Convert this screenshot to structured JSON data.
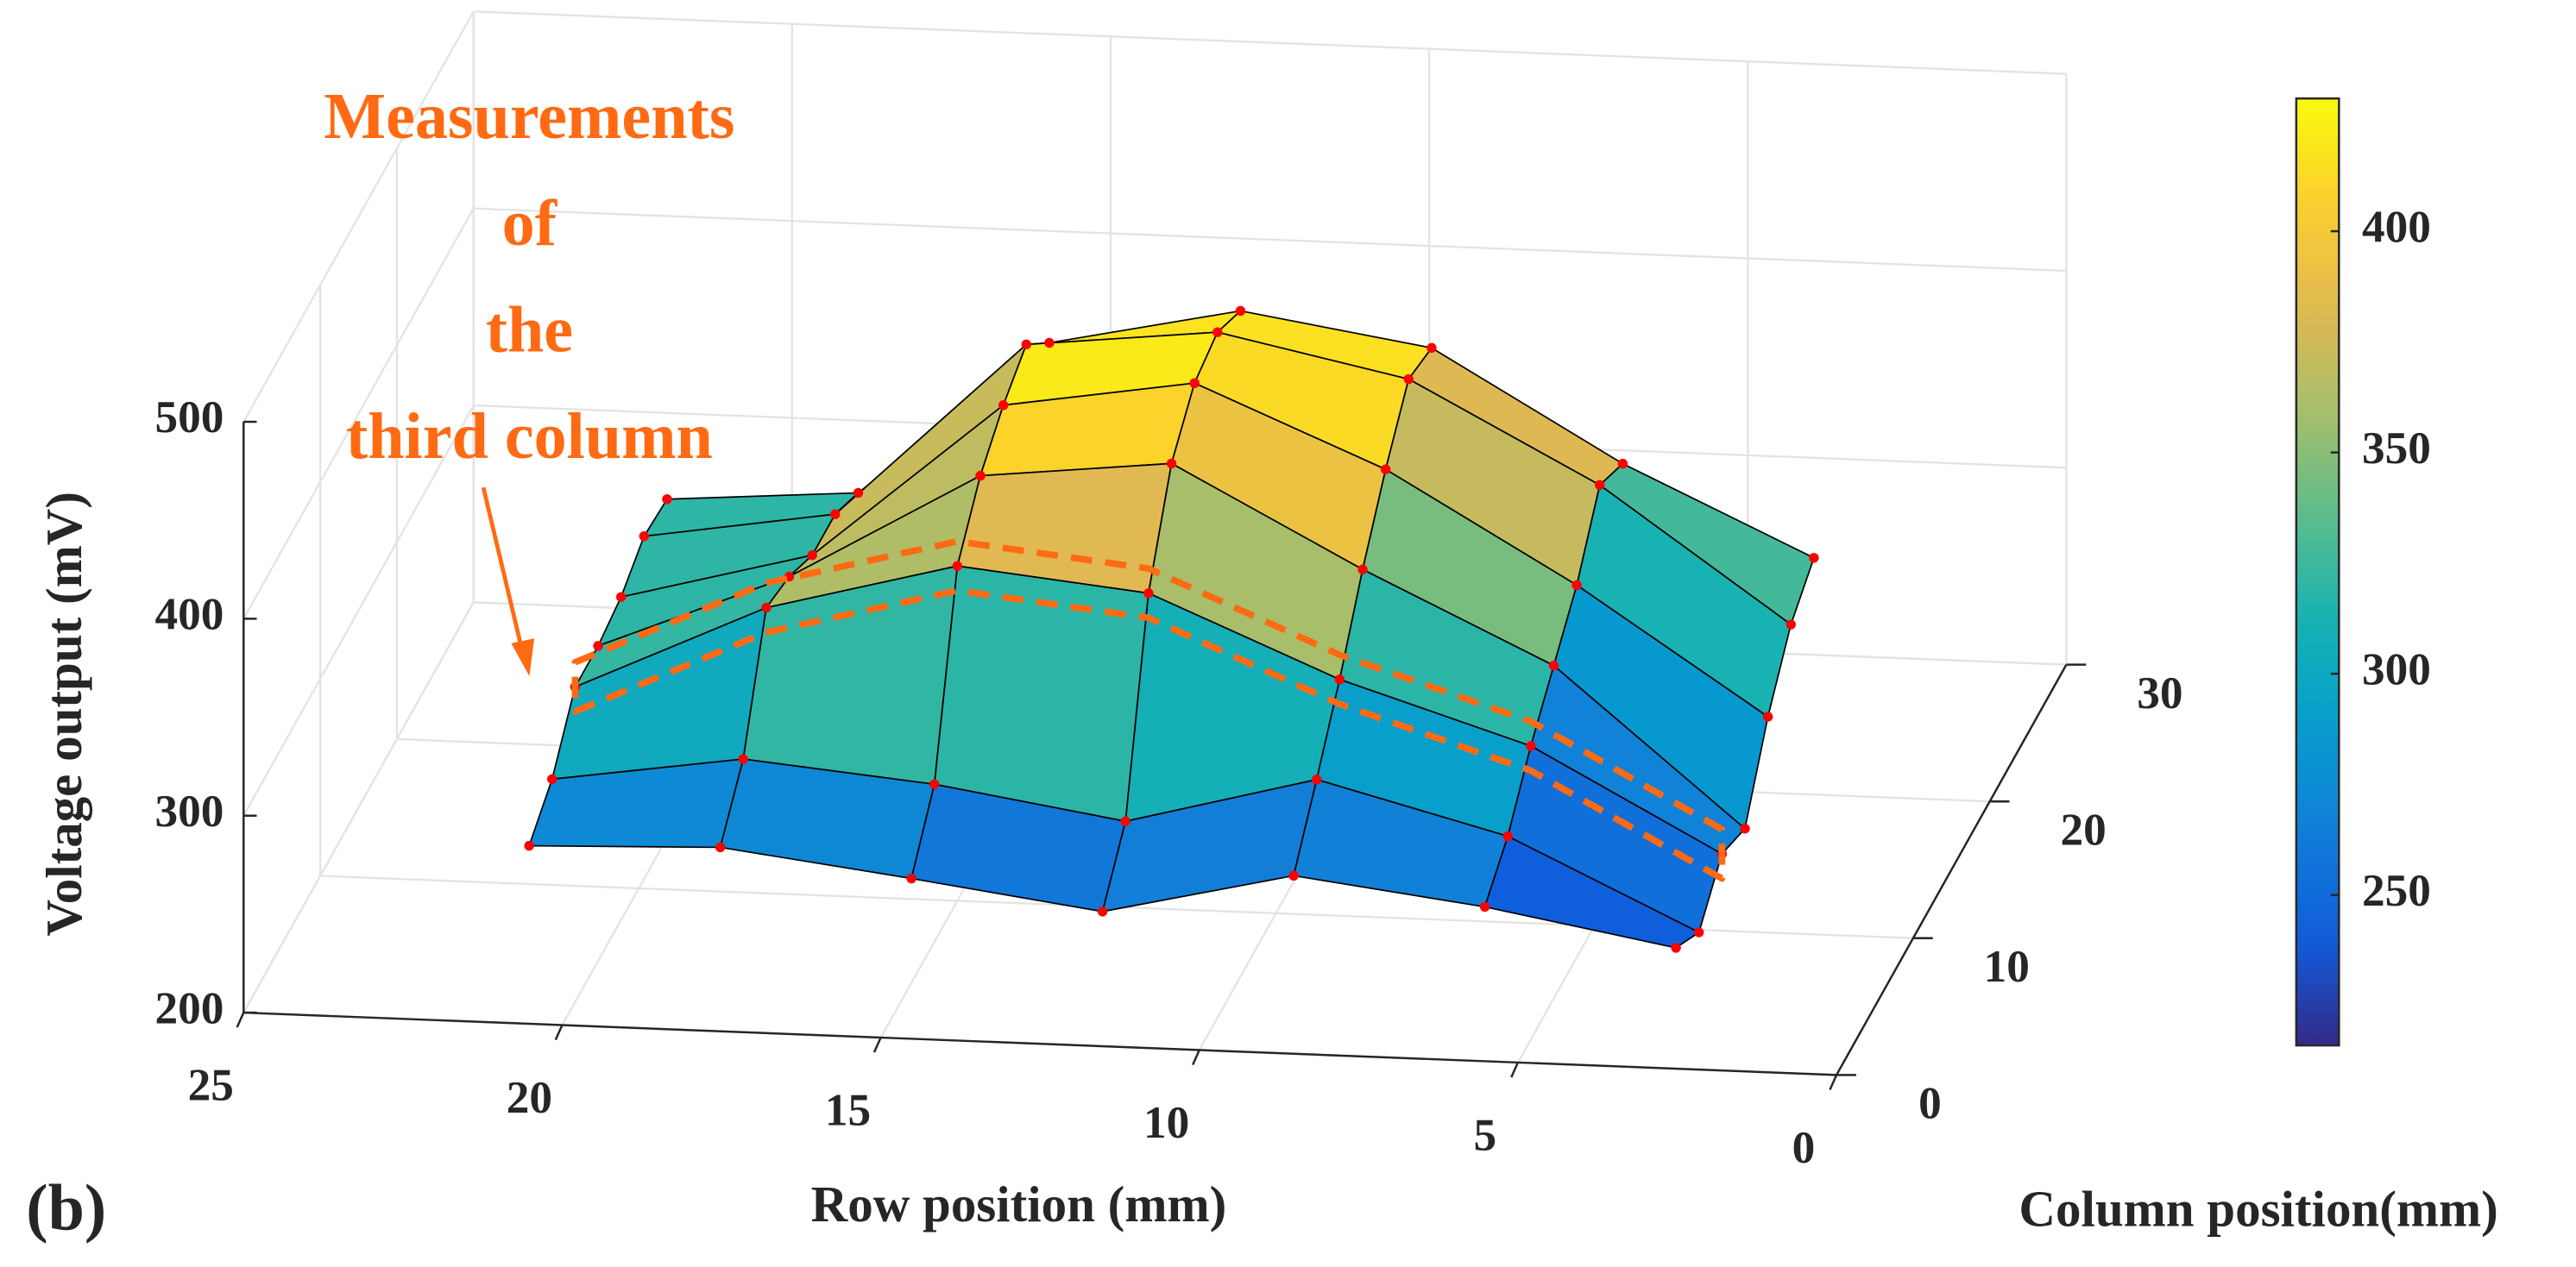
{
  "chart_data": {
    "type": "surface",
    "panel_label": "(b)",
    "xlabel": "Row position (mm)",
    "ylabel": "Column position(mm)",
    "zlabel": "Voltage output (mV)",
    "x": [
      21,
      18,
      15,
      12,
      9,
      6,
      3
    ],
    "y": [
      4,
      7,
      10,
      13,
      16,
      19,
      22
    ],
    "z": [
      [
        262,
        275,
        301,
        301,
        305,
        315,
        313
      ],
      [
        265,
        289,
        345,
        340,
        330,
        330,
        320
      ],
      [
        253,
        280,
        370,
        395,
        410,
        420,
        400
      ],
      [
        240,
        265,
        360,
        405,
        425,
        430,
        420
      ],
      [
        262,
        290,
        320,
        355,
        385,
        410,
        405
      ],
      [
        250,
        265,
        290,
        310,
        330,
        360,
        350
      ],
      [
        233,
        220,
        239,
        231,
        267,
        293,
        306
      ]
    ],
    "xlim": [
      0,
      25
    ],
    "xticks": [
      0,
      5,
      10,
      15,
      20,
      25
    ],
    "ylim": [
      0,
      30
    ],
    "yticks": [
      0,
      10,
      20,
      30
    ],
    "zlim": [
      200,
      500
    ],
    "zticks": [
      200,
      300,
      400,
      500
    ],
    "grid": true,
    "colormap": "parula",
    "edge_color": "#000000",
    "marker_color": "#ff0000",
    "colorbar": {
      "clim": [
        216,
        430
      ],
      "ticks": [
        250,
        300,
        350,
        400
      ]
    },
    "annotation": {
      "lines": [
        "Measurements",
        "of",
        "the",
        "third column"
      ],
      "color": "#ff6a13",
      "highlight_column": 2
    }
  }
}
